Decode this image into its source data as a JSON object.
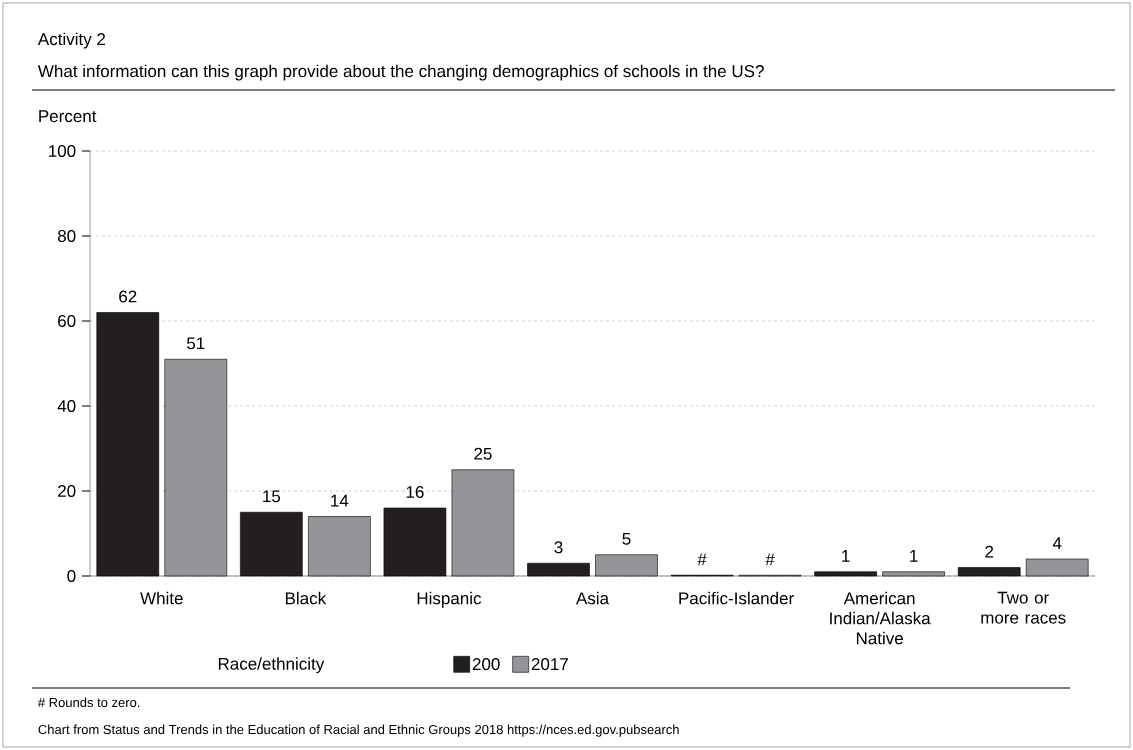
{
  "chart_data": {
    "type": "bar",
    "title": "Activity 2",
    "subtitle": "What information can this graph provide about the changing demographics of schools in the US?",
    "ylabel": "Percent",
    "xlabel": "Race/ethnicity",
    "categories": [
      "White",
      "Black",
      "Hispanic",
      "Asia",
      "Pacific-Islander",
      "American Indian/Alaska Native",
      "Two or more races"
    ],
    "series": [
      {
        "name": "200",
        "color": "#231f20",
        "values": [
          62,
          15,
          16,
          3,
          0.2,
          1,
          2
        ],
        "value_labels": [
          "62",
          "15",
          "16",
          "3",
          "#",
          "1",
          "2"
        ]
      },
      {
        "name": "2017",
        "color": "#939598",
        "values": [
          51,
          14,
          25,
          5,
          0.2,
          1,
          4
        ],
        "value_labels": [
          "51",
          "14",
          "25",
          "5",
          "#",
          "1",
          "4"
        ]
      }
    ],
    "ylim": [
      0,
      100
    ],
    "yticks": [
      0,
      20,
      40,
      60,
      80,
      100
    ],
    "grid": "y",
    "legend": "bottom",
    "annotations": [
      "# Rounds to zero.",
      "Chart from Status and Trends in the Education of Racial and Ethnic Groups 2018 https://nces.ed.gov.pubsearch"
    ]
  }
}
